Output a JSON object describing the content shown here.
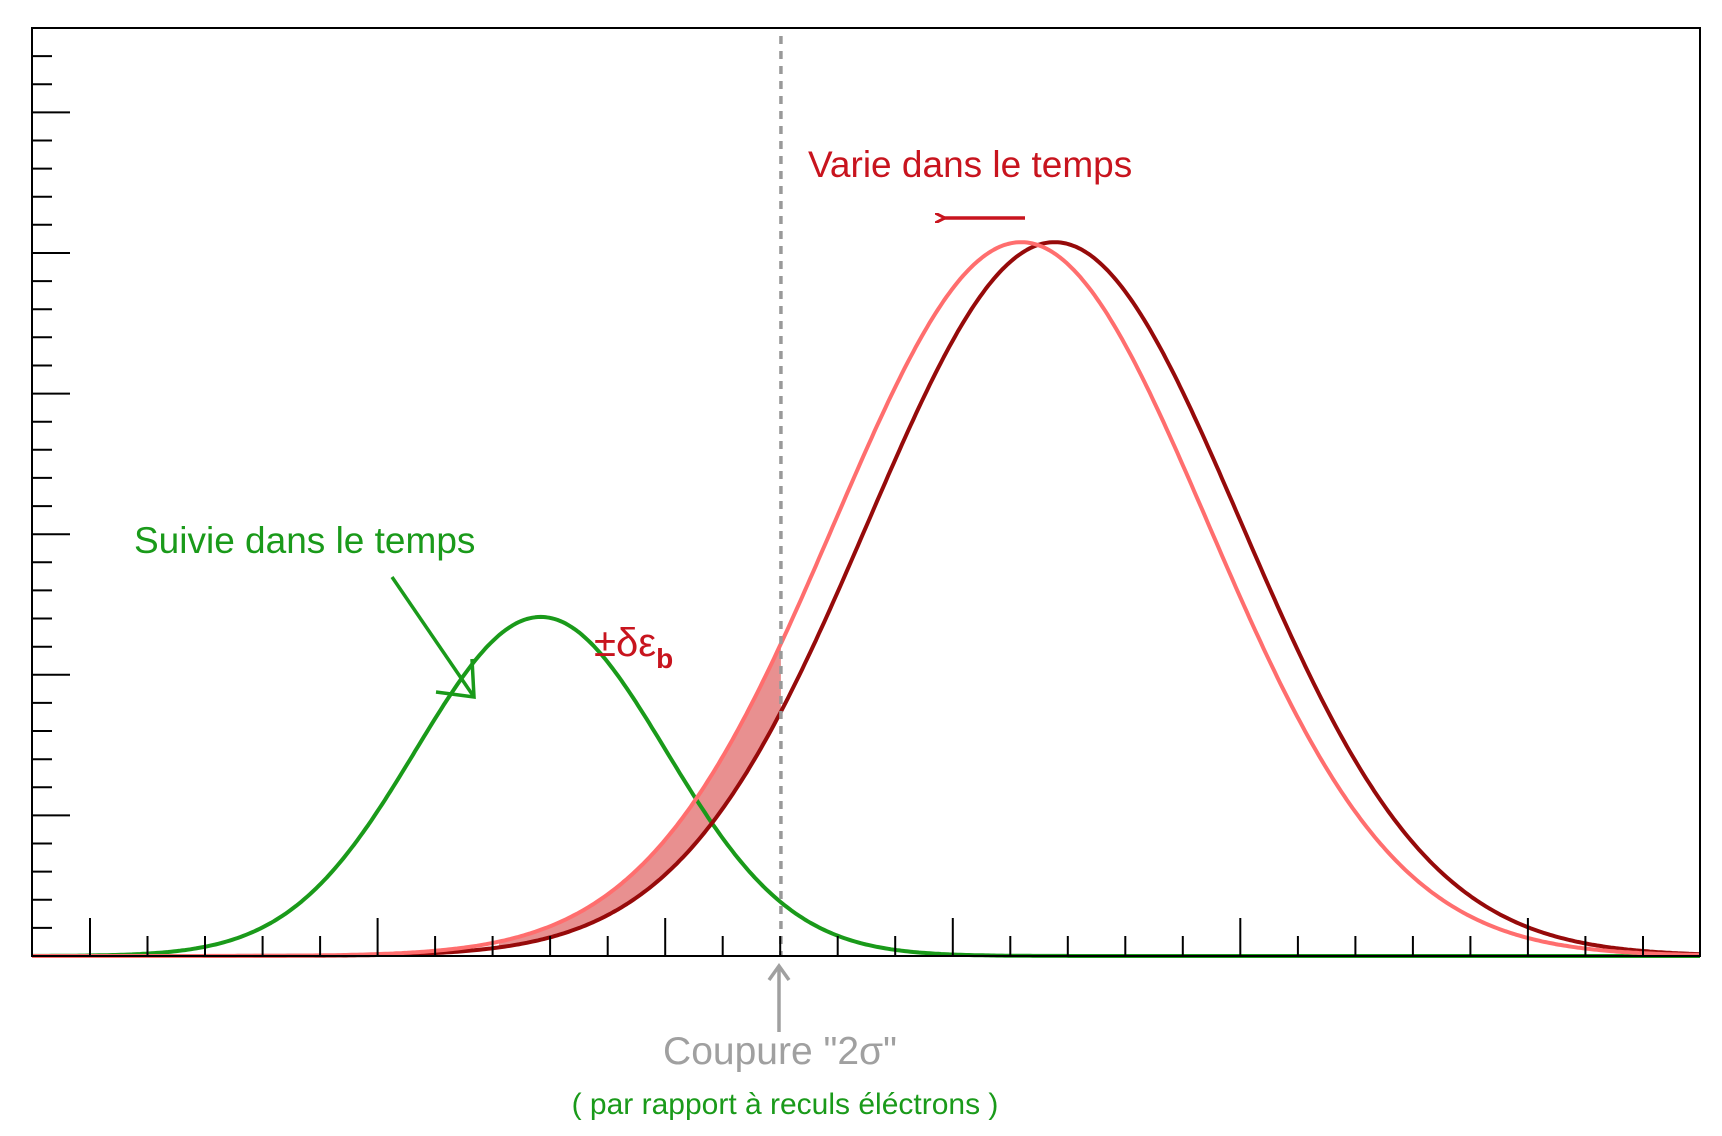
{
  "chart_data": {
    "type": "line",
    "title": "",
    "xlabel": "",
    "ylabel": "",
    "xlim": [
      0,
      1
    ],
    "ylim": [
      0,
      1.3
    ],
    "grid": false,
    "series": [
      {
        "mean": 0.305,
        "sigma": 0.075,
        "amplitude": 0.475,
        "color": "#1a9a1a"
      },
      {
        "mean": 0.593,
        "sigma": 0.112,
        "amplitude": 1.0,
        "color": "#ff6e6e"
      },
      {
        "mean": 0.613,
        "sigma": 0.112,
        "amplitude": 1.0,
        "color": "#960a0a"
      }
    ],
    "cut_x": 0.449,
    "shade_range": [
      0.28,
      0.449
    ],
    "shade_color": "#e89090",
    "annotations": {
      "varie": {
        "text": "Varie dans le temps",
        "color": "#c8141e"
      },
      "suivie": {
        "text": "Suivie dans le temps",
        "color": "#1a9a1a"
      },
      "delta": {
        "text": "±δε",
        "sub": "b",
        "color": "#c8141e"
      },
      "coupure": {
        "text": "Coupure \"2σ\"",
        "color": "#a0a0a0"
      },
      "rapport": {
        "text": "( par rapport à reculs éléctrons )",
        "color": "#1a9a1a"
      }
    }
  }
}
